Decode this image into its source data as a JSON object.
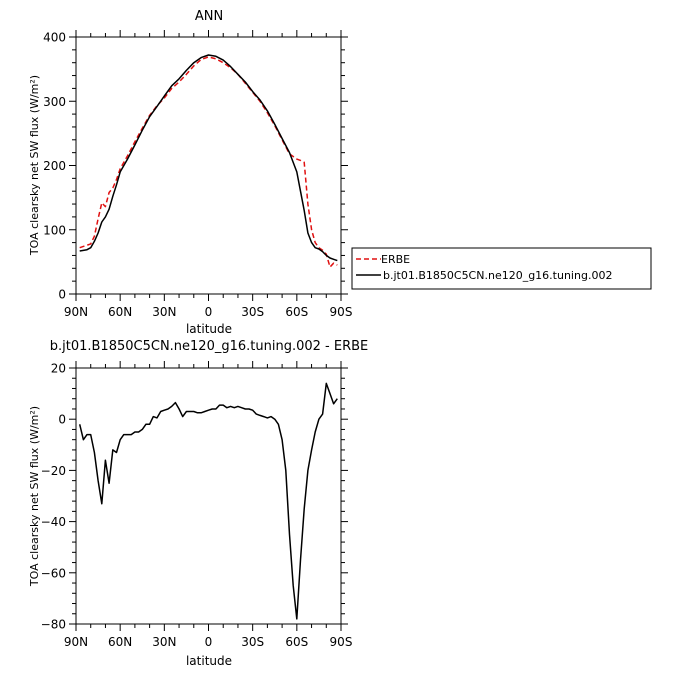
{
  "chart_data": [
    {
      "type": "line",
      "title": "ANN",
      "xlabel": "latitude",
      "ylabel": "TOA clearsky net SW flux (W/m²)",
      "xlim": [
        90,
        -90
      ],
      "ylim": [
        0,
        400
      ],
      "xticks": [
        90,
        60,
        30,
        0,
        -30,
        -60,
        -90
      ],
      "xtick_labels": [
        "90N",
        "60N",
        "30N",
        "0",
        "30S",
        "60S",
        "90S"
      ],
      "yticks": [
        0,
        100,
        200,
        300,
        400
      ],
      "ytick_labels": [
        "0",
        "100",
        "200",
        "300",
        "400"
      ],
      "legend_position": "right",
      "series": [
        {
          "name": "ERBE",
          "color": "#e01010",
          "dash": "dashed",
          "x": [
            87.5,
            82.5,
            80,
            77.5,
            75,
            72.5,
            70,
            67.5,
            65,
            62.5,
            60,
            55,
            50,
            45,
            40,
            35,
            30,
            25,
            20,
            15,
            10,
            5,
            0,
            -5,
            -10,
            -15,
            -20,
            -25,
            -30,
            -35,
            -40,
            -45,
            -50,
            -55,
            -60,
            -62.5,
            -65,
            -67.5,
            -70,
            -72.5,
            -75,
            -77.5,
            -80,
            -82.5,
            -85,
            -87.5
          ],
          "y": [
            72,
            76,
            78,
            90,
            117,
            142,
            136,
            158,
            165,
            178,
            195,
            215,
            237,
            258,
            278,
            293,
            305,
            320,
            330,
            342,
            355,
            365,
            369,
            366,
            360,
            352,
            342,
            328,
            314,
            300,
            282,
            262,
            240,
            218,
            210,
            208,
            205,
            140,
            100,
            80,
            72,
            68,
            62,
            42,
            48,
            45
          ]
        },
        {
          "name": "b.jt01.B1850C5CN.ne120_g16.tuning.002",
          "color": "#000000",
          "dash": "solid",
          "x": [
            87.5,
            82.5,
            80,
            77.5,
            75,
            72.5,
            70,
            67.5,
            65,
            62.5,
            60,
            55,
            50,
            45,
            40,
            35,
            30,
            25,
            20,
            15,
            10,
            5,
            0,
            -5,
            -10,
            -15,
            -20,
            -25,
            -30,
            -35,
            -40,
            -45,
            -50,
            -55,
            -60,
            -62.5,
            -65,
            -67.5,
            -70,
            -72.5,
            -75,
            -77.5,
            -80,
            -82.5,
            -85,
            -87.5
          ],
          "y": [
            67,
            69,
            72,
            82,
            95,
            112,
            120,
            132,
            152,
            170,
            190,
            210,
            232,
            255,
            276,
            292,
            308,
            324,
            335,
            348,
            360,
            368,
            372,
            370,
            364,
            354,
            342,
            330,
            315,
            302,
            285,
            264,
            242,
            220,
            190,
            160,
            130,
            95,
            80,
            72,
            70,
            66,
            60,
            56,
            54,
            52
          ]
        }
      ]
    },
    {
      "type": "line",
      "title": "b.jt01.B1850C5CN.ne120_g16.tuning.002 - ERBE",
      "xlabel": "latitude",
      "ylabel": "TOA clearsky net SW flux (W/m²)",
      "xlim": [
        90,
        -90
      ],
      "ylim": [
        -80,
        20
      ],
      "xticks": [
        90,
        60,
        30,
        0,
        -30,
        -60,
        -90
      ],
      "xtick_labels": [
        "90N",
        "60N",
        "30N",
        "0",
        "30S",
        "60S",
        "90S"
      ],
      "yticks": [
        -80,
        -60,
        -40,
        -20,
        0,
        20
      ],
      "ytick_labels": [
        "−80",
        "−60",
        "−40",
        "−20",
        "0",
        "20"
      ],
      "series": [
        {
          "name": "b.jt01.B1850C5CN.ne120_g16.tuning.002 - ERBE",
          "color": "#000000",
          "dash": "solid",
          "x": [
            87.5,
            85,
            82.5,
            80,
            77.5,
            75,
            72.5,
            70,
            67.5,
            65,
            62.5,
            60,
            57.5,
            55,
            52.5,
            50,
            47.5,
            45,
            42.5,
            40,
            37.5,
            35,
            32.5,
            30,
            27.5,
            25,
            22.5,
            20,
            17.5,
            15,
            12.5,
            10,
            7.5,
            5,
            2.5,
            0,
            -2.5,
            -5,
            -7.5,
            -10,
            -12.5,
            -15,
            -17.5,
            -20,
            -22.5,
            -25,
            -27.5,
            -30,
            -32.5,
            -35,
            -37.5,
            -40,
            -42.5,
            -45,
            -47.5,
            -50,
            -52.5,
            -55,
            -57.5,
            -60,
            -62.5,
            -65,
            -67.5,
            -70,
            -72.5,
            -75,
            -77.5,
            -80,
            -82.5,
            -85,
            -87.5
          ],
          "y": [
            -2,
            -8,
            -6,
            -6,
            -13,
            -24,
            -33,
            -16,
            -25,
            -12,
            -13,
            -8,
            -6,
            -6,
            -6,
            -5,
            -5,
            -4,
            -2,
            -2,
            1,
            0.5,
            3,
            3.5,
            4,
            5,
            6.5,
            4,
            1,
            3,
            3,
            3,
            2.5,
            2.5,
            3,
            3.5,
            4,
            4,
            5.5,
            5.5,
            4.5,
            5,
            4.5,
            5,
            4.5,
            4,
            4,
            3.5,
            2,
            1.5,
            1,
            0.5,
            1,
            0,
            -2,
            -8,
            -20,
            -45,
            -65,
            -78,
            -55,
            -35,
            -20,
            -12,
            -5,
            0,
            2,
            14,
            10,
            6,
            8
          ]
        }
      ]
    }
  ]
}
